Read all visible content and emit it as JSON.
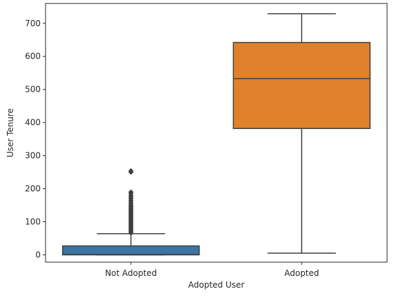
{
  "chart_data": {
    "type": "box",
    "title": "",
    "xlabel": "Adopted User",
    "ylabel": "User Tenure",
    "ylim": [
      -22,
      760
    ],
    "yticks": [
      0,
      100,
      200,
      300,
      400,
      500,
      600,
      700
    ],
    "grid": false,
    "legend": "none",
    "categories": [
      "Not Adopted",
      "Adopted"
    ],
    "boxes": [
      {
        "category": "Not Adopted",
        "color": "#3a75a4",
        "whisker_low": 0,
        "q1": 0,
        "median": 1,
        "q3": 27,
        "whisker_high": 64,
        "outliers": [
          66,
          70,
          74,
          78,
          82,
          86,
          90,
          94,
          98,
          102,
          106,
          110,
          114,
          118,
          122,
          126,
          130,
          134,
          138,
          142,
          146,
          150,
          155,
          160,
          165,
          170,
          175,
          180,
          186,
          190,
          250,
          254
        ]
      },
      {
        "category": "Adopted",
        "color": "#e1812c",
        "whisker_low": 5,
        "q1": 382,
        "median": 533,
        "q3": 642,
        "whisker_high": 729,
        "outliers": []
      }
    ]
  }
}
